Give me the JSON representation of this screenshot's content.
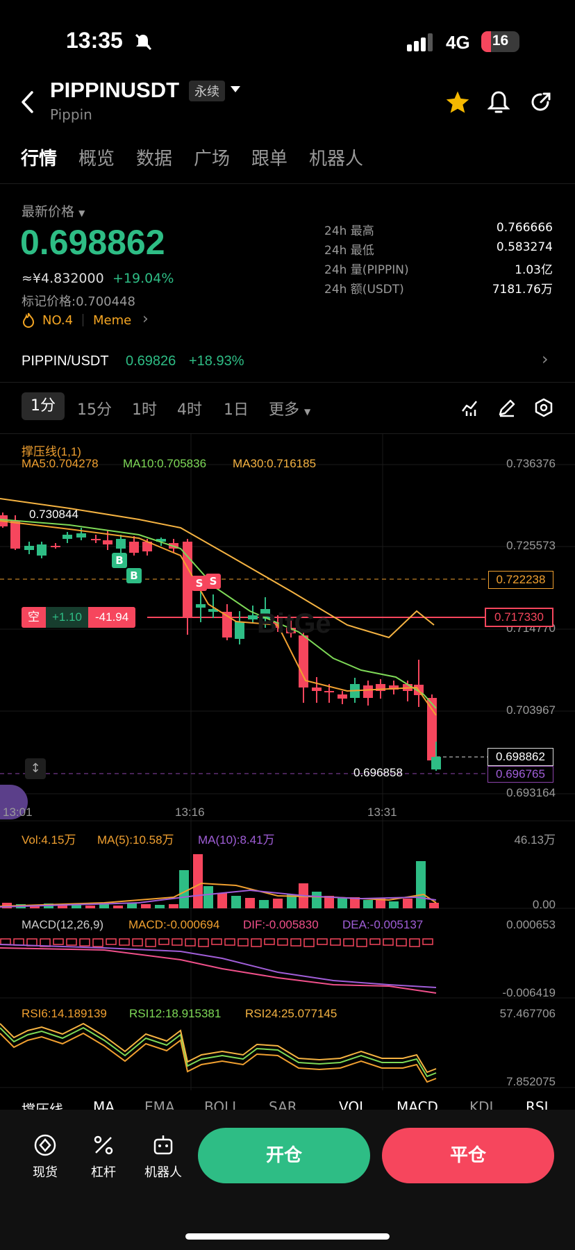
{
  "status_bar": {
    "time": "13:35",
    "network": "4G",
    "battery": "16"
  },
  "header": {
    "symbol": "PIPPINUSDT",
    "contract_type": "永续",
    "subtitle": "Pippin"
  },
  "tabs": [
    "行情",
    "概览",
    "数据",
    "广场",
    "跟单",
    "机器人"
  ],
  "price": {
    "label": "最新价格",
    "last": "0.698862",
    "cny": "≈¥4.832000",
    "change": "+19.04%",
    "mark_label": "标记价格:",
    "mark": "0.700448",
    "rank": "NO.4",
    "tag": "Meme"
  },
  "stats": [
    {
      "label": "24h  最高",
      "value": "0.766666"
    },
    {
      "label": "24h  最低",
      "value": "0.583274"
    },
    {
      "label": "24h  量(PIPPIN)",
      "value": "1.03亿"
    },
    {
      "label": "24h  额(USDT)",
      "value": "7181.76万"
    }
  ],
  "spot": {
    "pair": "PIPPIN/USDT",
    "price": "0.69826",
    "change": "+18.93%"
  },
  "intervals": {
    "items": [
      "1分",
      "15分",
      "1时",
      "4时",
      "1日"
    ],
    "more": "更多"
  },
  "chart": {
    "indicator": "撑压线(1,1)",
    "ma5": "MA5:0.704278",
    "ma10": "MA10:0.705836",
    "ma30": "MA30:0.716185",
    "max_label": "0.730844",
    "min_label": "0.696858",
    "position": {
      "side": "空",
      "pnl": "+1.10",
      "value": "-41.94"
    },
    "y_ticks": [
      "0.736376",
      "0.725573",
      "0.714770",
      "0.703967",
      "0.693164"
    ],
    "level_resist": "0.722238",
    "level_entry": "0.717330",
    "level_last": "0.698862",
    "level_mark": "0.696765",
    "x_ticks": [
      "13:01",
      "13:16",
      "13:31"
    ],
    "watermark": "BitGe"
  },
  "volume": {
    "vol": "Vol:4.15万",
    "ma5": "MA(5):10.58万",
    "ma10": "MA(10):8.41万",
    "top": "46.13万",
    "bottom": "0.00"
  },
  "macd": {
    "title": "MACD(12,26,9)",
    "macd": "MACD:-0.000694",
    "dif": "DIF:-0.005830",
    "dea": "DEA:-0.005137",
    "top": "0.000653",
    "bottom": "-0.006419"
  },
  "rsi": {
    "rsi6": "RSI6:14.189139",
    "rsi12": "RSI12:18.915381",
    "rsi24": "RSI24:25.077145",
    "top": "57.467706",
    "bottom": "7.852075"
  },
  "indicator_bar": [
    "撑压线",
    "MA",
    "EMA",
    "BOLL",
    "SAR",
    "VOL",
    "MACD",
    "KDJ",
    "RSI"
  ],
  "bottom_nav": [
    {
      "label": "现货",
      "icon": "spot-icon"
    },
    {
      "label": "杠杆",
      "icon": "leverage-icon"
    },
    {
      "label": "机器人",
      "icon": "robot-icon"
    }
  ],
  "actions": {
    "open": "开仓",
    "close": "平仓"
  },
  "colors": {
    "up": "#2ebd85",
    "down": "#f6465d",
    "ma5": "#f0a030",
    "ma10": "#7ed957",
    "ma30": "#f5b342"
  }
}
